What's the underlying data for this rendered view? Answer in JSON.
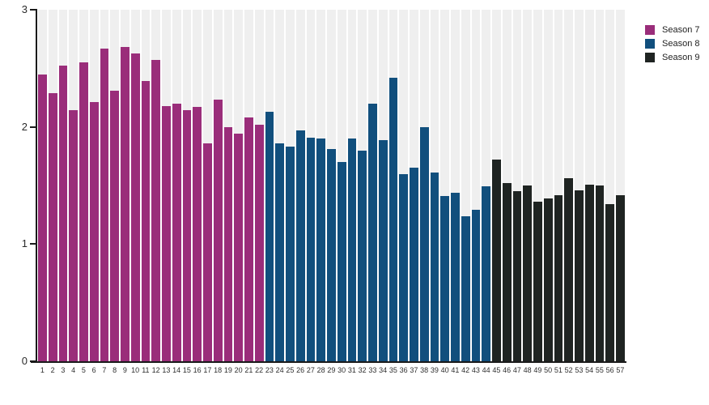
{
  "chart_data": {
    "type": "bar",
    "title": "",
    "xlabel": "",
    "ylabel": "",
    "ylim": [
      0,
      3
    ],
    "y_ticks": [
      0,
      1,
      2,
      3
    ],
    "grid": false,
    "legend_position": "top-right",
    "column_bg_color": "#EFEFEF",
    "axis_color": "#1a1a1a",
    "categories": [
      "1",
      "2",
      "3",
      "4",
      "5",
      "6",
      "7",
      "8",
      "9",
      "10",
      "11",
      "12",
      "13",
      "14",
      "15",
      "16",
      "17",
      "18",
      "19",
      "20",
      "21",
      "22",
      "23",
      "24",
      "25",
      "26",
      "27",
      "28",
      "29",
      "30",
      "31",
      "32",
      "33",
      "34",
      "35",
      "36",
      "37",
      "38",
      "39",
      "40",
      "41",
      "42",
      "43",
      "44",
      "45",
      "46",
      "47",
      "48",
      "49",
      "50",
      "51",
      "52",
      "53",
      "54",
      "55",
      "56",
      "57"
    ],
    "series": [
      {
        "name": "Season 7",
        "color": "#9A2D7A",
        "values": [
          2.45,
          2.29,
          2.52,
          2.14,
          2.55,
          2.21,
          2.67,
          2.31,
          2.68,
          2.63,
          2.39,
          2.57,
          2.18,
          2.2,
          2.14,
          2.17,
          1.86,
          2.23,
          2.0,
          1.94,
          2.08,
          2.02
        ]
      },
      {
        "name": "Season 8",
        "color": "#114F7D",
        "values": [
          2.13,
          1.86,
          1.83,
          1.97,
          1.91,
          1.9,
          1.81,
          1.7,
          1.9,
          1.8,
          2.2,
          1.89,
          2.42,
          1.6,
          1.65,
          2.0,
          1.61,
          1.41,
          1.44,
          1.24,
          1.29,
          1.49
        ]
      },
      {
        "name": "Season 9",
        "color": "#1F2422",
        "values": [
          1.72,
          1.52,
          1.45,
          1.5,
          1.36,
          1.39,
          1.42,
          1.56,
          1.46,
          1.51,
          1.5,
          1.34,
          1.42
        ]
      }
    ]
  }
}
